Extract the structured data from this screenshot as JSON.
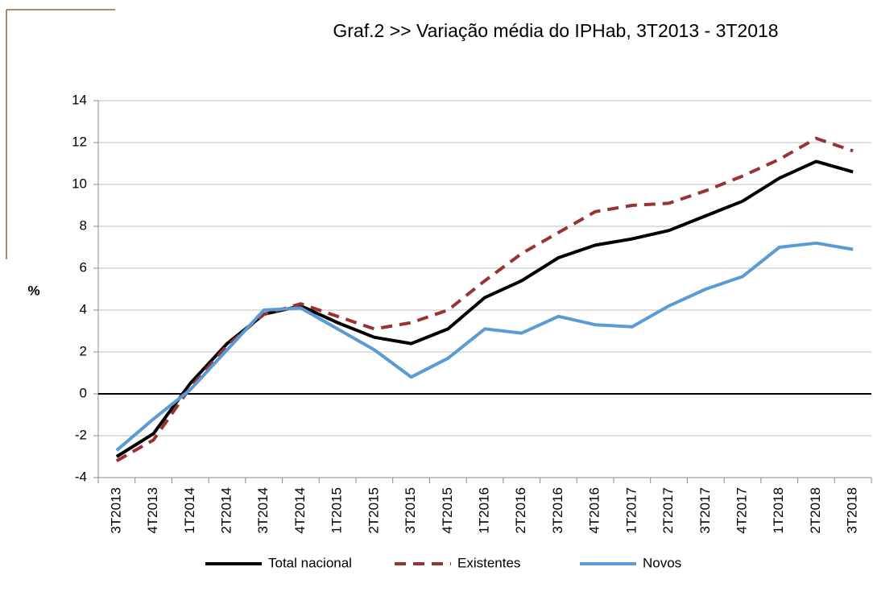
{
  "chart_data": {
    "type": "line",
    "title": "Graf.2   >>  Variação média do IPHab, 3T2013 - 3T2018",
    "ylabel": "%",
    "categories": [
      "3T2013",
      "4T2013",
      "1T2014",
      "2T2014",
      "3T2014",
      "4T2014",
      "1T2015",
      "2T2015",
      "3T2015",
      "4T2015",
      "1T2016",
      "2T2016",
      "3T2016",
      "4T2016",
      "1T2017",
      "2T2017",
      "3T2017",
      "4T2017",
      "1T2018",
      "2T2018",
      "3T2018"
    ],
    "series": [
      {
        "name": "Total nacional",
        "color": "#000000",
        "dash": false,
        "values": [
          -3.0,
          -1.9,
          0.5,
          2.4,
          3.8,
          4.2,
          3.4,
          2.7,
          2.4,
          3.1,
          4.6,
          5.4,
          6.5,
          7.1,
          7.4,
          7.8,
          8.5,
          9.2,
          10.3,
          11.1,
          10.6
        ]
      },
      {
        "name": "Existentes",
        "color": "#993333",
        "dash": true,
        "values": [
          -3.2,
          -2.2,
          0.3,
          2.3,
          3.8,
          4.3,
          3.7,
          3.1,
          3.4,
          4.0,
          5.4,
          6.7,
          7.7,
          8.7,
          9.0,
          9.1,
          9.7,
          10.4,
          11.2,
          12.2,
          11.6
        ]
      },
      {
        "name": "Novos",
        "color": "#5b9bd5",
        "dash": false,
        "values": [
          -2.7,
          -1.2,
          0.2,
          2.1,
          4.0,
          4.1,
          3.1,
          2.1,
          0.8,
          1.7,
          3.1,
          2.9,
          3.7,
          3.3,
          3.2,
          4.2,
          5.0,
          5.6,
          7.0,
          7.2,
          6.9
        ]
      }
    ],
    "ylim": [
      -4,
      14
    ],
    "yticks": [
      -4,
      -2,
      0,
      2,
      4,
      6,
      8,
      10,
      12,
      14
    ],
    "grid": true,
    "legend": "bottom"
  }
}
